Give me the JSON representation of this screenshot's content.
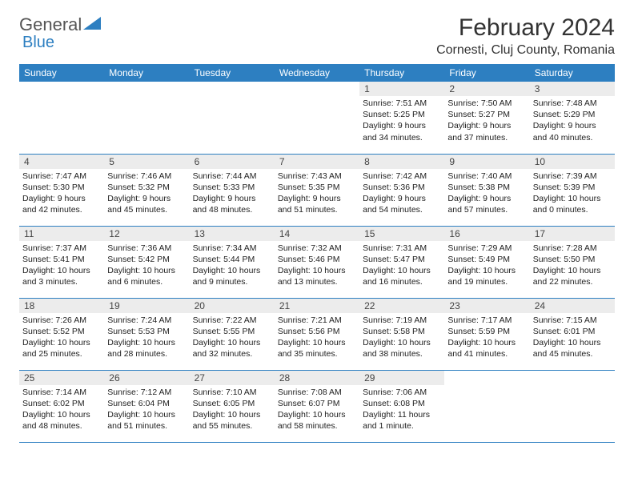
{
  "logo": {
    "text1": "General",
    "text2": "Blue"
  },
  "title": "February 2024",
  "location": "Cornesti, Cluj County, Romania",
  "weekdays": [
    "Sunday",
    "Monday",
    "Tuesday",
    "Wednesday",
    "Thursday",
    "Friday",
    "Saturday"
  ],
  "colors": {
    "header_bg": "#2d7fc1",
    "header_fg": "#ffffff",
    "daynum_bg": "#ececec"
  },
  "weeks": [
    [
      null,
      null,
      null,
      null,
      {
        "n": "1",
        "sr": "7:51 AM",
        "ss": "5:25 PM",
        "dl": "9 hours and 34 minutes."
      },
      {
        "n": "2",
        "sr": "7:50 AM",
        "ss": "5:27 PM",
        "dl": "9 hours and 37 minutes."
      },
      {
        "n": "3",
        "sr": "7:48 AM",
        "ss": "5:29 PM",
        "dl": "9 hours and 40 minutes."
      }
    ],
    [
      {
        "n": "4",
        "sr": "7:47 AM",
        "ss": "5:30 PM",
        "dl": "9 hours and 42 minutes."
      },
      {
        "n": "5",
        "sr": "7:46 AM",
        "ss": "5:32 PM",
        "dl": "9 hours and 45 minutes."
      },
      {
        "n": "6",
        "sr": "7:44 AM",
        "ss": "5:33 PM",
        "dl": "9 hours and 48 minutes."
      },
      {
        "n": "7",
        "sr": "7:43 AM",
        "ss": "5:35 PM",
        "dl": "9 hours and 51 minutes."
      },
      {
        "n": "8",
        "sr": "7:42 AM",
        "ss": "5:36 PM",
        "dl": "9 hours and 54 minutes."
      },
      {
        "n": "9",
        "sr": "7:40 AM",
        "ss": "5:38 PM",
        "dl": "9 hours and 57 minutes."
      },
      {
        "n": "10",
        "sr": "7:39 AM",
        "ss": "5:39 PM",
        "dl": "10 hours and 0 minutes."
      }
    ],
    [
      {
        "n": "11",
        "sr": "7:37 AM",
        "ss": "5:41 PM",
        "dl": "10 hours and 3 minutes."
      },
      {
        "n": "12",
        "sr": "7:36 AM",
        "ss": "5:42 PM",
        "dl": "10 hours and 6 minutes."
      },
      {
        "n": "13",
        "sr": "7:34 AM",
        "ss": "5:44 PM",
        "dl": "10 hours and 9 minutes."
      },
      {
        "n": "14",
        "sr": "7:32 AM",
        "ss": "5:46 PM",
        "dl": "10 hours and 13 minutes."
      },
      {
        "n": "15",
        "sr": "7:31 AM",
        "ss": "5:47 PM",
        "dl": "10 hours and 16 minutes."
      },
      {
        "n": "16",
        "sr": "7:29 AM",
        "ss": "5:49 PM",
        "dl": "10 hours and 19 minutes."
      },
      {
        "n": "17",
        "sr": "7:28 AM",
        "ss": "5:50 PM",
        "dl": "10 hours and 22 minutes."
      }
    ],
    [
      {
        "n": "18",
        "sr": "7:26 AM",
        "ss": "5:52 PM",
        "dl": "10 hours and 25 minutes."
      },
      {
        "n": "19",
        "sr": "7:24 AM",
        "ss": "5:53 PM",
        "dl": "10 hours and 28 minutes."
      },
      {
        "n": "20",
        "sr": "7:22 AM",
        "ss": "5:55 PM",
        "dl": "10 hours and 32 minutes."
      },
      {
        "n": "21",
        "sr": "7:21 AM",
        "ss": "5:56 PM",
        "dl": "10 hours and 35 minutes."
      },
      {
        "n": "22",
        "sr": "7:19 AM",
        "ss": "5:58 PM",
        "dl": "10 hours and 38 minutes."
      },
      {
        "n": "23",
        "sr": "7:17 AM",
        "ss": "5:59 PM",
        "dl": "10 hours and 41 minutes."
      },
      {
        "n": "24",
        "sr": "7:15 AM",
        "ss": "6:01 PM",
        "dl": "10 hours and 45 minutes."
      }
    ],
    [
      {
        "n": "25",
        "sr": "7:14 AM",
        "ss": "6:02 PM",
        "dl": "10 hours and 48 minutes."
      },
      {
        "n": "26",
        "sr": "7:12 AM",
        "ss": "6:04 PM",
        "dl": "10 hours and 51 minutes."
      },
      {
        "n": "27",
        "sr": "7:10 AM",
        "ss": "6:05 PM",
        "dl": "10 hours and 55 minutes."
      },
      {
        "n": "28",
        "sr": "7:08 AM",
        "ss": "6:07 PM",
        "dl": "10 hours and 58 minutes."
      },
      {
        "n": "29",
        "sr": "7:06 AM",
        "ss": "6:08 PM",
        "dl": "11 hours and 1 minute."
      },
      null,
      null
    ]
  ],
  "labels": {
    "sunrise": "Sunrise: ",
    "sunset": "Sunset: ",
    "daylight": "Daylight: "
  }
}
